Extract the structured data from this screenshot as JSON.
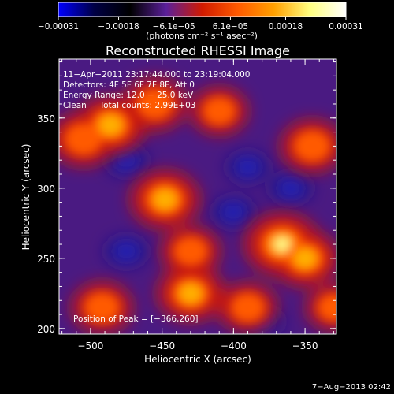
{
  "chart_data": {
    "type": "heatmap",
    "title": "Reconstructed RHESSI Image",
    "xlabel": "Heliocentric X (arcsec)",
    "ylabel": "Heliocentric Y (arcsec)",
    "xlim": [
      -522,
      -328
    ],
    "ylim": [
      196,
      392
    ],
    "x_ticks": [
      -500,
      -450,
      -400,
      -350
    ],
    "x_tick_labels": [
      "−500",
      "−450",
      "−400",
      "−350"
    ],
    "y_ticks": [
      200,
      250,
      300,
      350
    ],
    "y_tick_labels": [
      "200",
      "250",
      "300",
      "350"
    ],
    "colorbar": {
      "range": [
        -0.00031,
        0.00031
      ],
      "ticks": [
        -0.00031,
        -0.00018,
        -6.1e-05,
        6.1e-05,
        0.00018,
        0.00031
      ],
      "tick_labels": [
        "−0.00031",
        "−0.00018",
        "−6.1e−05",
        "6.1e−05",
        "0.00018",
        "0.00031"
      ],
      "unit_label": "(photons cm⁻² s⁻¹ asec⁻²)",
      "stops": [
        "#0000ff",
        "#000044",
        "#000000",
        "#5a1f9a",
        "#d11a00",
        "#ff5a00",
        "#ffa000",
        "#ffff80",
        "#ffffff"
      ]
    },
    "info_lines": [
      "11−Apr−2011 23:17:44.000 to 23:19:04.000",
      "Detectors: 4F 5F 6F 7F 8F, Att 0",
      "Energy Range: 12.0 − 25.0 keV",
      "Clean     Total counts: 2.99E+03"
    ],
    "peak_label": "Position of Peak = [−366,260]",
    "peak": [
      -366,
      260
    ],
    "sources": [
      {
        "x": -486,
        "y": 345,
        "level": 0.85
      },
      {
        "x": -505,
        "y": 335,
        "level": 0.75
      },
      {
        "x": -455,
        "y": 360,
        "level": 0.7
      },
      {
        "x": -410,
        "y": 355,
        "level": 0.55
      },
      {
        "x": -345,
        "y": 330,
        "level": 0.7
      },
      {
        "x": -448,
        "y": 292,
        "level": 0.85
      },
      {
        "x": -430,
        "y": 255,
        "level": 0.6
      },
      {
        "x": -366,
        "y": 260,
        "level": 1.0
      },
      {
        "x": -350,
        "y": 250,
        "level": 0.8
      },
      {
        "x": -430,
        "y": 225,
        "level": 0.8
      },
      {
        "x": -492,
        "y": 215,
        "level": 0.65
      },
      {
        "x": -390,
        "y": 215,
        "level": 0.6
      },
      {
        "x": -330,
        "y": 215,
        "level": 0.5
      }
    ],
    "cold_spots": [
      {
        "x": -475,
        "y": 320,
        "level": -0.15
      },
      {
        "x": -390,
        "y": 315,
        "level": -0.15
      },
      {
        "x": -400,
        "y": 283,
        "level": -0.2
      },
      {
        "x": -475,
        "y": 255,
        "level": -0.18
      },
      {
        "x": -380,
        "y": 205,
        "level": -0.22
      },
      {
        "x": -360,
        "y": 300,
        "level": -0.12
      }
    ]
  },
  "footer_date": "7−Aug−2013 02:42"
}
